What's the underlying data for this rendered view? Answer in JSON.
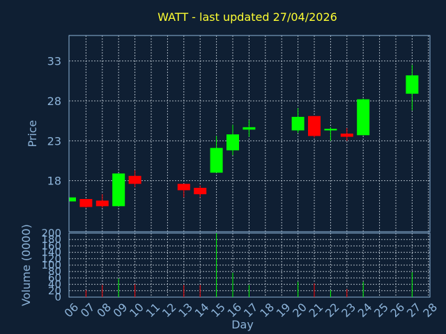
{
  "chart_data": {
    "type": "candlestick",
    "title": "WATT - last updated 27/04/2026",
    "xlabel": "Day",
    "ylabel": "Price",
    "volume_label": "Volume (0000)",
    "price_ylim": [
      11.6,
      36.2
    ],
    "price_ticks": [
      18,
      23,
      28,
      33
    ],
    "volume_ylim": [
      0,
      200
    ],
    "volume_ticks": [
      0,
      20,
      40,
      60,
      80,
      100,
      120,
      140,
      160,
      180,
      200
    ],
    "x_ticks": [
      "06",
      "07",
      "08",
      "09",
      "10",
      "11",
      "12",
      "13",
      "14",
      "15",
      "16",
      "17",
      "18",
      "19",
      "20",
      "21",
      "22",
      "23",
      "24",
      "25",
      "26",
      "27",
      "28"
    ],
    "grid": true,
    "colors": {
      "up": "#00ff00",
      "down": "#ff0000",
      "background": "#0f1f33",
      "title": "#ffff33",
      "axis": "#8db4da"
    },
    "candles": [
      {
        "day": "06",
        "open": 15.4,
        "close": 15.9,
        "high": 15.9,
        "low": 15.4,
        "volume": 0
      },
      {
        "day": "07",
        "open": 15.7,
        "close": 14.7,
        "high": 15.7,
        "low": 14.6,
        "volume": 22
      },
      {
        "day": "08",
        "open": 15.5,
        "close": 14.8,
        "high": 16.3,
        "low": 14.6,
        "volume": 38
      },
      {
        "day": "09",
        "open": 14.8,
        "close": 18.9,
        "high": 18.9,
        "low": 14.8,
        "volume": 58
      },
      {
        "day": "10",
        "open": 18.6,
        "close": 17.6,
        "high": 19.3,
        "low": 17.2,
        "volume": 40
      },
      {
        "day": "13",
        "open": 17.6,
        "close": 16.8,
        "high": 17.6,
        "low": 15.9,
        "volume": 38
      },
      {
        "day": "14",
        "open": 17.1,
        "close": 16.3,
        "high": 17.4,
        "low": 15.9,
        "volume": 38
      },
      {
        "day": "15",
        "open": 19.0,
        "close": 22.1,
        "high": 23.6,
        "low": 19.0,
        "volume": 200
      },
      {
        "day": "16",
        "open": 21.8,
        "close": 23.8,
        "high": 25.0,
        "low": 21.2,
        "volume": 76
      },
      {
        "day": "17",
        "open": 24.4,
        "close": 24.7,
        "high": 25.6,
        "low": 23.5,
        "volume": 38
      },
      {
        "day": "20",
        "open": 24.3,
        "close": 26.0,
        "high": 27.1,
        "low": 24.0,
        "volume": 48
      },
      {
        "day": "21",
        "open": 26.1,
        "close": 23.6,
        "high": 26.1,
        "low": 23.4,
        "volume": 43
      },
      {
        "day": "22",
        "open": 24.3,
        "close": 24.5,
        "high": 24.7,
        "low": 23.0,
        "volume": 22
      },
      {
        "day": "23",
        "open": 23.9,
        "close": 23.5,
        "high": 24.6,
        "low": 23.0,
        "volume": 25
      },
      {
        "day": "24",
        "open": 23.7,
        "close": 28.2,
        "high": 28.3,
        "low": 23.7,
        "volume": 48
      },
      {
        "day": "27",
        "open": 28.9,
        "close": 31.2,
        "high": 32.5,
        "low": 26.8,
        "volume": 78
      }
    ]
  }
}
